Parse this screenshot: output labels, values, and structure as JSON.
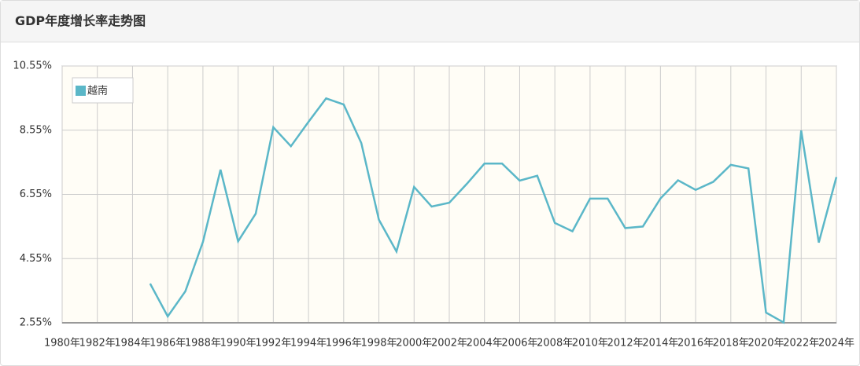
{
  "header": {
    "title": "GDP年度增长率走势图"
  },
  "chart_data": {
    "type": "line",
    "x": [
      1985,
      1986,
      1987,
      1988,
      1989,
      1990,
      1991,
      1992,
      1993,
      1994,
      1995,
      1996,
      1997,
      1998,
      1999,
      2000,
      2001,
      2002,
      2003,
      2004,
      2005,
      2006,
      2007,
      2008,
      2009,
      2010,
      2011,
      2012,
      2013,
      2014,
      2015,
      2016,
      2017,
      2018,
      2019,
      2020,
      2021,
      2022,
      2023,
      2024
    ],
    "series": [
      {
        "name": "越南",
        "color": "#5bb7c8",
        "values": [
          3.77,
          2.75,
          3.53,
          5.07,
          7.32,
          5.09,
          5.95,
          8.64,
          8.05,
          8.81,
          9.54,
          9.35,
          8.15,
          5.76,
          4.77,
          6.78,
          6.17,
          6.29,
          6.88,
          7.51,
          7.51,
          6.98,
          7.13,
          5.66,
          5.4,
          6.42,
          6.42,
          5.5,
          5.55,
          6.42,
          6.99,
          6.69,
          6.94,
          7.47,
          7.36,
          2.87,
          2.56,
          8.54,
          5.05,
          7.09
        ]
      }
    ],
    "xlim": [
      1980,
      2024
    ],
    "xticks": [
      {
        "value": 1980,
        "label": "1980年"
      },
      {
        "value": 1982,
        "label": "1982年"
      },
      {
        "value": 1984,
        "label": "1984年"
      },
      {
        "value": 1986,
        "label": "1986年"
      },
      {
        "value": 1988,
        "label": "1988年"
      },
      {
        "value": 1990,
        "label": "1990年"
      },
      {
        "value": 1992,
        "label": "1992年"
      },
      {
        "value": 1994,
        "label": "1994年"
      },
      {
        "value": 1996,
        "label": "1996年"
      },
      {
        "value": 1998,
        "label": "1998年"
      },
      {
        "value": 2000,
        "label": "2000年"
      },
      {
        "value": 2002,
        "label": "2002年"
      },
      {
        "value": 2004,
        "label": "2004年"
      },
      {
        "value": 2006,
        "label": "2006年"
      },
      {
        "value": 2008,
        "label": "2008年"
      },
      {
        "value": 2010,
        "label": "2010年"
      },
      {
        "value": 2012,
        "label": "2012年"
      },
      {
        "value": 2014,
        "label": "2014年"
      },
      {
        "value": 2016,
        "label": "2016年"
      },
      {
        "value": 2018,
        "label": "2018年"
      },
      {
        "value": 2020,
        "label": "2020年"
      },
      {
        "value": 2022,
        "label": "2022年"
      },
      {
        "value": 2024,
        "label": "2024年"
      }
    ],
    "ylim": [
      2.55,
      10.55
    ],
    "yticks": [
      {
        "value": 2.55,
        "label": "2.55%"
      },
      {
        "value": 4.55,
        "label": "4.55%"
      },
      {
        "value": 6.55,
        "label": "6.55%"
      },
      {
        "value": 8.55,
        "label": "8.55%"
      },
      {
        "value": 10.55,
        "label": "10.55%"
      }
    ],
    "grid": true
  }
}
